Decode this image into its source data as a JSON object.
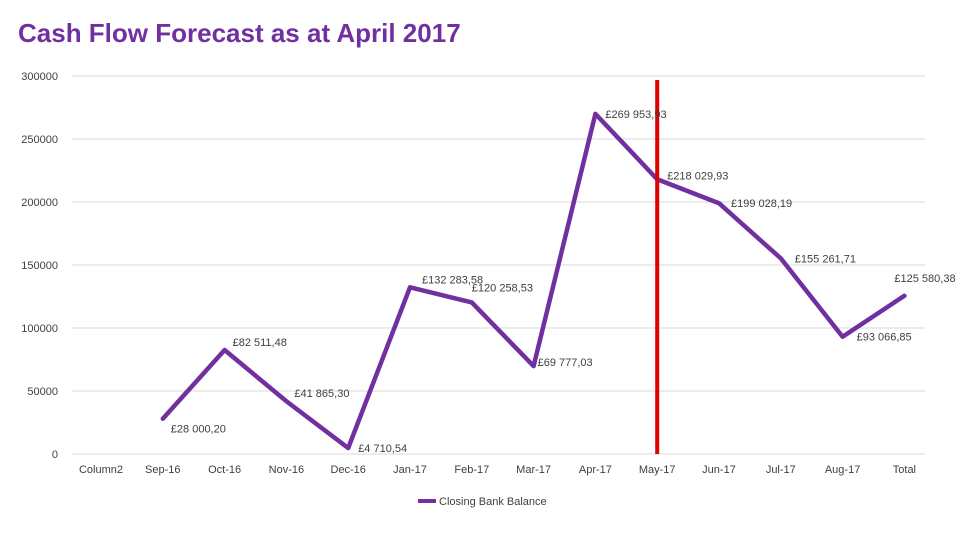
{
  "chart_data": {
    "type": "line",
    "title": "Cash Flow Forecast as at April 2017",
    "categories": [
      "Column2",
      "Sep-16",
      "Oct-16",
      "Nov-16",
      "Dec-16",
      "Jan-17",
      "Feb-17",
      "Mar-17",
      "Apr-17",
      "May-17",
      "Jun-17",
      "Jul-17",
      "Aug-17",
      "Total"
    ],
    "series": [
      {
        "name": "Closing Bank Balance",
        "color": "#7030A0",
        "values": [
          null,
          28000.2,
          82511.48,
          41865.3,
          4710.54,
          132283.58,
          120258.53,
          69777.03,
          269953.93,
          218029.93,
          199028.19,
          155261.71,
          93066.85,
          125580.38
        ],
        "labels": [
          "",
          "£28 000,20",
          "£82 511,48",
          "£41 865,30",
          "£4 710,54",
          "£132 283,58",
          "£120 258,53",
          "£69 777,03",
          "£269 953,93",
          "£218 029,93",
          "£199 028,19",
          "£155 261,71",
          "£93 066,85",
          "£125 580,38"
        ]
      }
    ],
    "ylim": [
      0,
      300000
    ],
    "yticks": [
      0,
      50000,
      100000,
      150000,
      200000,
      250000,
      300000
    ],
    "grid": true,
    "legend": "bottom",
    "marker_line": {
      "category": "May-17",
      "color": "#E00000"
    }
  }
}
